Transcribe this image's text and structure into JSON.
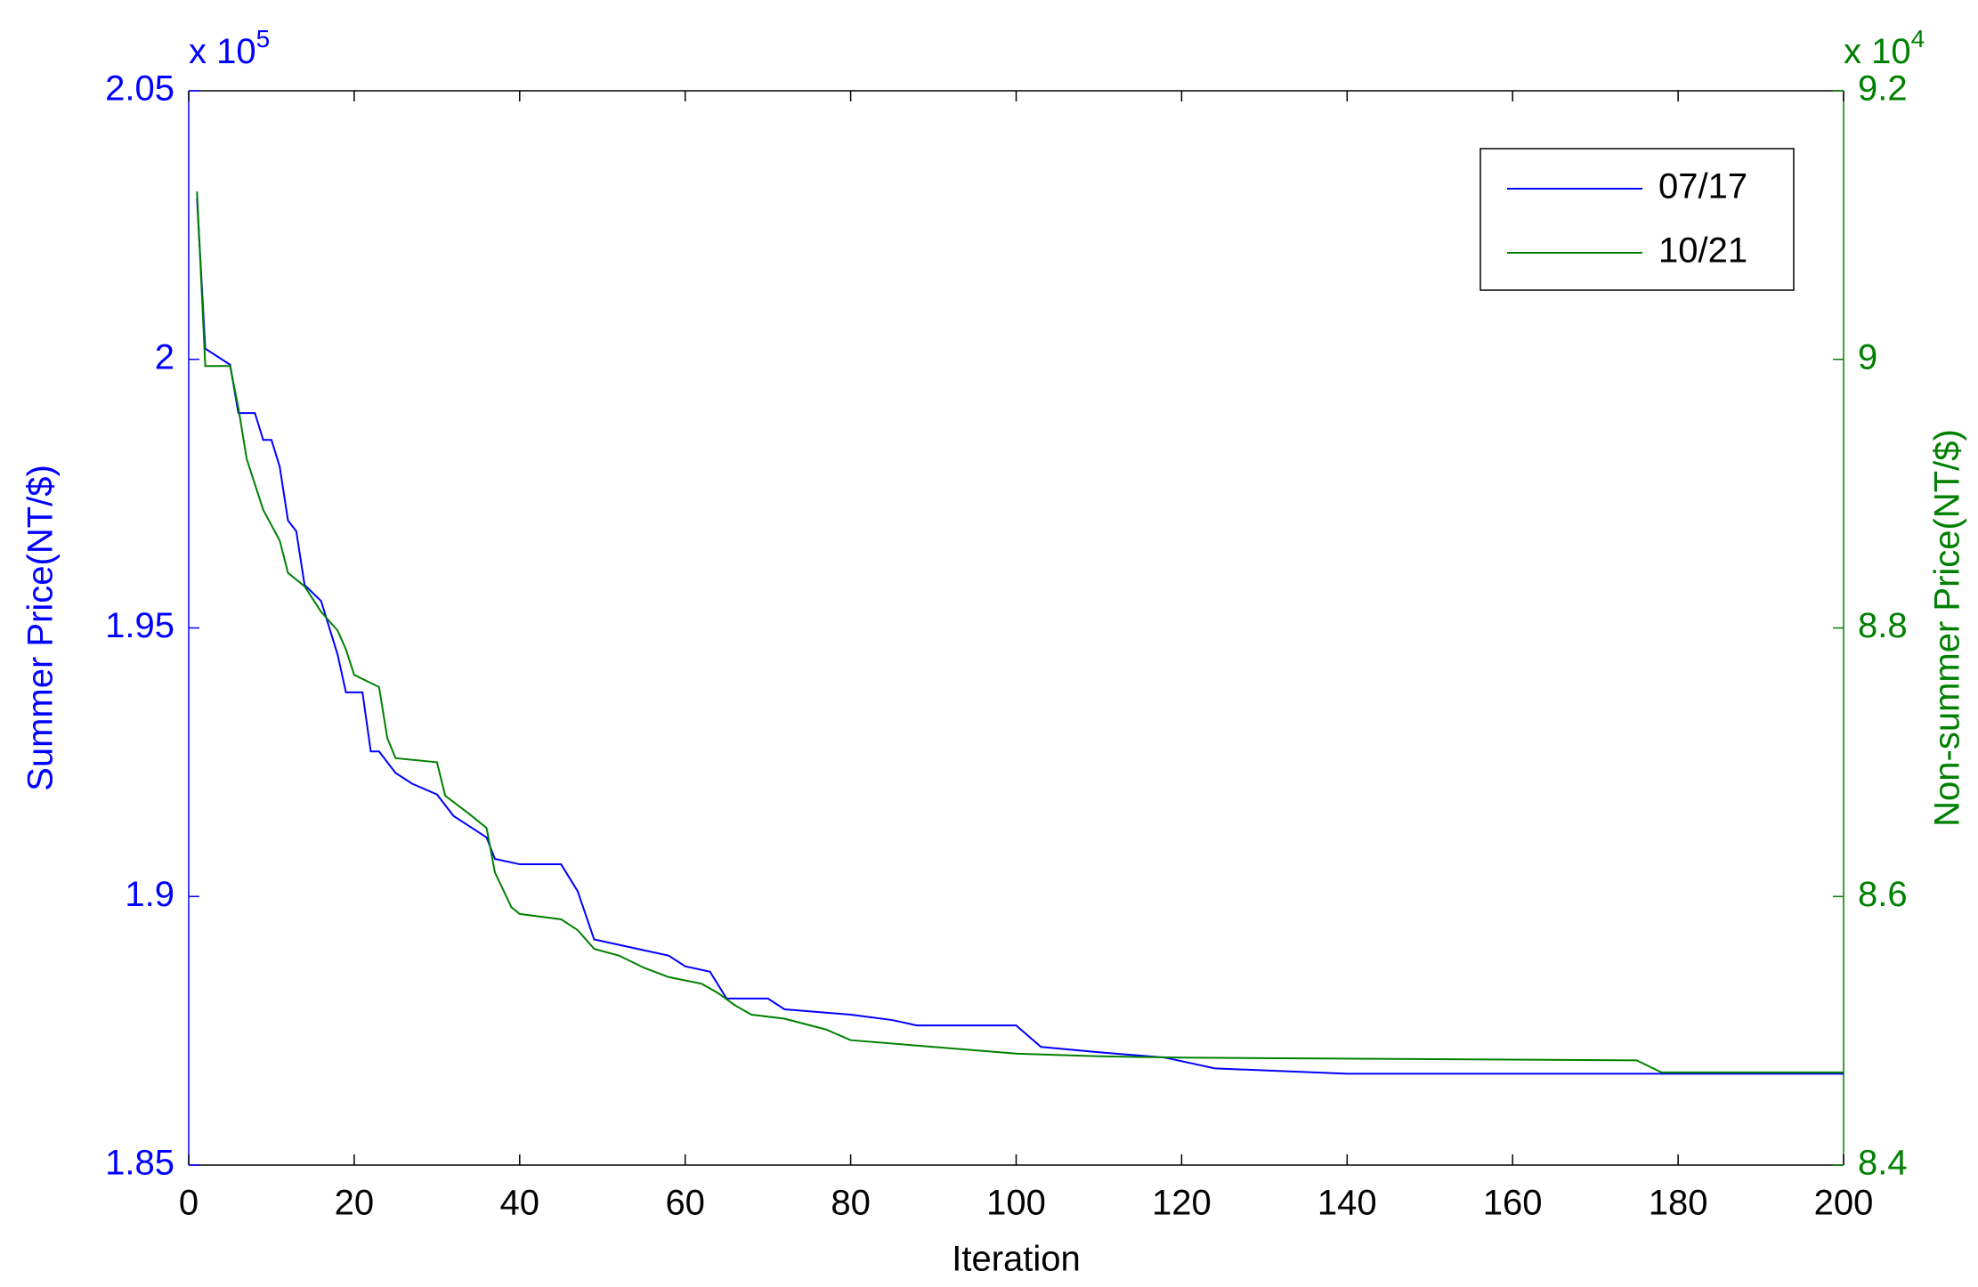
{
  "chart_data": {
    "type": "line",
    "xlabel": "Iteration",
    "ylabel": "Summer Price(NT/$)",
    "y2label": "Non-summer Price(NT/$)",
    "y_multiplier": {
      "base": "x 10",
      "exponent": "5"
    },
    "y2_multiplier": {
      "base": "x 10",
      "exponent": "4"
    },
    "xlim": [
      0,
      200
    ],
    "xticks": [
      0,
      20,
      40,
      60,
      80,
      100,
      120,
      140,
      160,
      180,
      200
    ],
    "ylim": [
      185000,
      205000
    ],
    "yticks": [
      {
        "value": 185000,
        "label": "1.85"
      },
      {
        "value": 190000,
        "label": "1.9"
      },
      {
        "value": 195000,
        "label": "1.95"
      },
      {
        "value": 200000,
        "label": "2"
      },
      {
        "value": 205000,
        "label": "2.05"
      }
    ],
    "y2lim": [
      84000,
      92000
    ],
    "y2ticks": [
      {
        "value": 84000,
        "label": "8.4"
      },
      {
        "value": 86000,
        "label": "8.6"
      },
      {
        "value": 88000,
        "label": "8.8"
      },
      {
        "value": 90000,
        "label": "9"
      },
      {
        "value": 92000,
        "label": "9.2"
      }
    ],
    "legend": "upper right",
    "series": [
      {
        "name": "07/17",
        "color": "#0000ff",
        "x": [
          1,
          2,
          4,
          5,
          6,
          8,
          9,
          10,
          11,
          12,
          13,
          14,
          16,
          18,
          19,
          21,
          22,
          23,
          25,
          27,
          30,
          32,
          34,
          36,
          37,
          40,
          45,
          47,
          49,
          55,
          58,
          60,
          63,
          65,
          70,
          72,
          80,
          85,
          88,
          100,
          103,
          110,
          118,
          121,
          124,
          132,
          140,
          200
        ],
        "values": [
          203000,
          200200,
          200000,
          199900,
          199000,
          199000,
          198500,
          198500,
          198000,
          197000,
          196800,
          195800,
          195500,
          194500,
          193800,
          193800,
          192700,
          192700,
          192300,
          192100,
          191900,
          191500,
          191300,
          191100,
          190700,
          190600,
          190600,
          190100,
          189200,
          189000,
          188900,
          188700,
          188600,
          188100,
          188100,
          187900,
          187800,
          187700,
          187600,
          187600,
          187200,
          187100,
          187000,
          186900,
          186800,
          186750,
          186700,
          186700
        ]
      },
      {
        "name": "10/21",
        "color": "#008000",
        "axis": "y2",
        "x": [
          1,
          2,
          5,
          6,
          7,
          9,
          11,
          12,
          14,
          16,
          18,
          19,
          20,
          23,
          24,
          25,
          30,
          31,
          34,
          36,
          37,
          39,
          40,
          45,
          47,
          49,
          52,
          55,
          58,
          62,
          64,
          66,
          68,
          72,
          77,
          80,
          90,
          100,
          110,
          120,
          175,
          178,
          200
        ],
        "values": [
          91250,
          89950,
          89950,
          89640,
          89260,
          88880,
          88650,
          88410,
          88310,
          88120,
          87980,
          87840,
          87650,
          87560,
          87180,
          87030,
          87000,
          86750,
          86610,
          86510,
          86180,
          85920,
          85870,
          85830,
          85750,
          85610,
          85560,
          85470,
          85400,
          85350,
          85280,
          85190,
          85120,
          85090,
          85010,
          84930,
          84880,
          84830,
          84810,
          84800,
          84780,
          84690,
          84690
        ]
      }
    ]
  }
}
